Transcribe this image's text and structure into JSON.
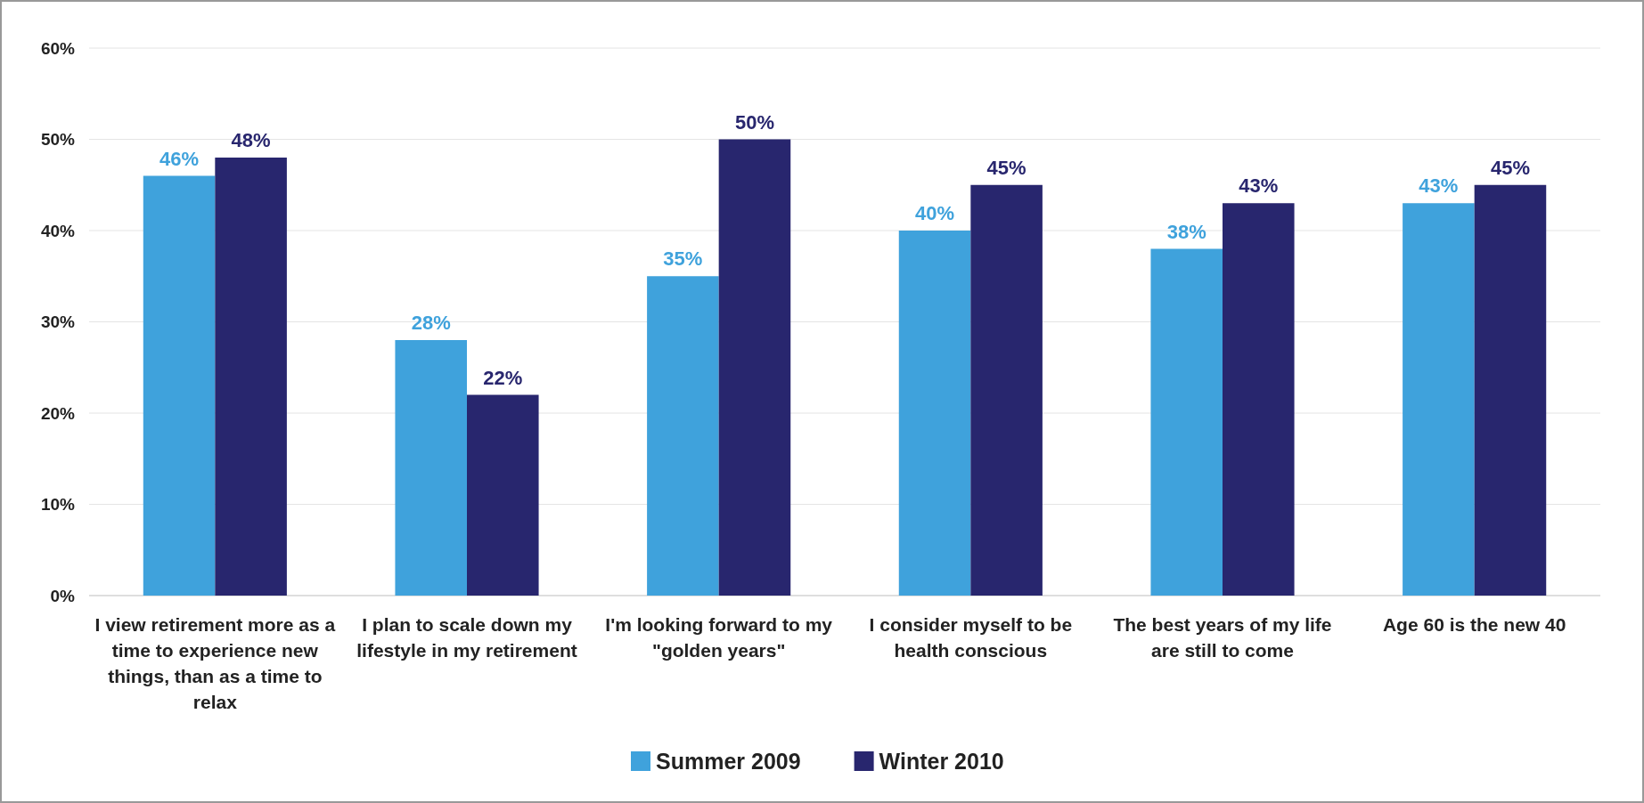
{
  "chart_data": {
    "type": "bar",
    "categories": [
      "I view retirement more as a time to experience new things, than as a time to relax",
      "I plan to scale down my lifestyle in my retirement",
      "I'm looking forward to my \"golden years\"",
      "I consider myself to be health conscious",
      "The best years of my life are still to come",
      "Age 60 is the new 40"
    ],
    "series": [
      {
        "name": "Summer 2009",
        "color": "#3fa2dc",
        "values": [
          46,
          28,
          35,
          40,
          38,
          43
        ],
        "value_labels": [
          "46%",
          "28%",
          "35%",
          "40%",
          "38%",
          "43%"
        ]
      },
      {
        "name": "Winter 2010",
        "color": "#28266e",
        "values": [
          48,
          22,
          50,
          45,
          43,
          45
        ],
        "value_labels": [
          "48%",
          "22%",
          "50%",
          "45%",
          "43%",
          "45%"
        ]
      }
    ],
    "ylim": [
      0,
      60
    ],
    "yticks": [
      {
        "value": 0,
        "label": "0%"
      },
      {
        "value": 10,
        "label": "10%"
      },
      {
        "value": 20,
        "label": "20%"
      },
      {
        "value": 30,
        "label": "30%"
      },
      {
        "value": 40,
        "label": "40%"
      },
      {
        "value": 50,
        "label": "50%"
      },
      {
        "value": 60,
        "label": "60%"
      }
    ],
    "grid": "y",
    "legend": "bottom"
  }
}
